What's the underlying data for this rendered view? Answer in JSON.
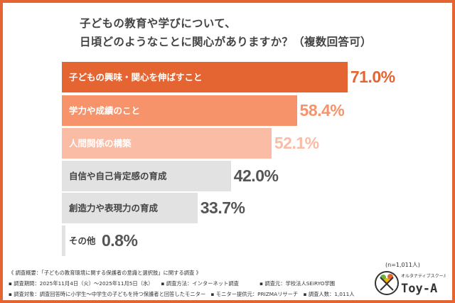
{
  "title_lines": [
    "子どもの教育や学びについて、",
    "日頃どのようなことに関心がありますか？（複数回答可）"
  ],
  "chart_data": {
    "type": "bar",
    "orientation": "horizontal",
    "title": "子どもの教育や学びについて、日頃どのようなことに関心がありますか？（複数回答可）",
    "categories": [
      "子どもの興味・関心を伸ばすこと",
      "学力や成績のこと",
      "人間関係の構築",
      "自信や自己肯定感の育成",
      "創造力や表現力の育成",
      "その他"
    ],
    "values": [
      71.0,
      58.4,
      52.1,
      42.0,
      33.7,
      0.8
    ],
    "value_labels": [
      "71.0%",
      "58.4%",
      "52.1%",
      "42.0%",
      "33.7%",
      "0.8%"
    ],
    "bar_colors": [
      "#e56532",
      "#f7936b",
      "#fbbca5",
      "#e2e2e2",
      "#e2e2e2",
      "#e2e2e2"
    ],
    "label_colors": [
      "#ffffff",
      "#ffffff",
      "#ffffff",
      "#444444",
      "#444444",
      "#444444"
    ],
    "value_colors": [
      "#e56532",
      "#f7936b",
      "#fbbca5",
      "#555555",
      "#555555",
      "#555555"
    ],
    "xlim": [
      0,
      100
    ],
    "grid": false,
    "legend": "none"
  },
  "sample": "(n=1,011人)",
  "notes": [
    "《 調査概要：「子どもの教育環境に関する保護者の意識と選択肢」に関する調査 》",
    "▪ 調査期間：2025年11月4日（火）～2025年11月5日（水）　　▪ 調査方法：インターネット調査　　　　▪ 調査元：学校法人SEiRYO学園",
    "▪ 調査対象：調査回答時に小学生～中学生の子どもを持つ保護者と回答したモニター　▪ モニター提供元：PRIZMAリサーチ　▪ 調査人数：1,011人"
  ],
  "logo": {
    "tagline": "オルタナティブスクール",
    "name": "Toy-A"
  },
  "colors": {
    "accent": "#e56532"
  }
}
